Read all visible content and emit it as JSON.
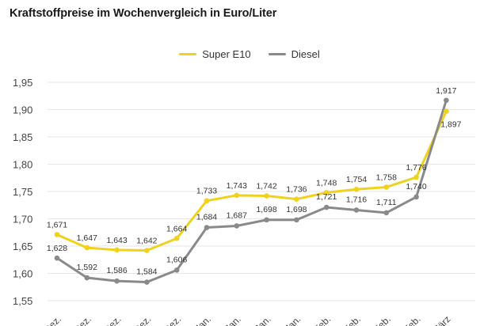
{
  "title": "Kraftstoffpreise im Wochenvergleich in Euro/Liter",
  "legend": {
    "series_a": "Super E10",
    "series_b": "Diesel"
  },
  "colors": {
    "series_a": "#f0d21e",
    "series_b": "#8a8a8a",
    "grid": "#e6e6e6",
    "text": "#444444"
  },
  "chart_data": {
    "type": "line",
    "title": "Kraftstoffpreise im Wochenvergleich in Euro/Liter",
    "xlabel": "",
    "ylabel": "",
    "ylim": [
      1.55,
      1.95
    ],
    "yticks": [
      "1,55",
      "1,60",
      "1,65",
      "1,70",
      "1,75",
      "1,80",
      "1,85",
      "1,90",
      "1,95"
    ],
    "grid": true,
    "legend_position": "top-center",
    "categories": [
      "Dez.",
      "Dez.",
      "Dez.",
      "Dez.",
      "Dez.",
      "Jan.",
      "Jan.",
      "Jan.",
      "Jan.",
      "Feb.",
      "Feb.",
      "Feb.",
      "Feb.",
      "März"
    ],
    "series": [
      {
        "name": "Super E10",
        "values": [
          1.671,
          1.647,
          1.643,
          1.642,
          1.664,
          1.733,
          1.743,
          1.742,
          1.736,
          1.748,
          1.754,
          1.758,
          1.776,
          1.897
        ],
        "labels": [
          "1,671",
          "1,647",
          "1,643",
          "1,642",
          "1,664",
          "1,733",
          "1,743",
          "1,742",
          "1,736",
          "1,748",
          "1,754",
          "1,758",
          "1,776",
          "1,897"
        ]
      },
      {
        "name": "Diesel",
        "values": [
          1.628,
          1.592,
          1.586,
          1.584,
          1.606,
          1.684,
          1.687,
          1.698,
          1.698,
          1.721,
          1.716,
          1.711,
          1.74,
          1.917
        ],
        "labels": [
          "1,628",
          "1,592",
          "1,586",
          "1,584",
          "1,606",
          "1,684",
          "1,687",
          "1,698",
          "1,698",
          "1,721",
          "1,716",
          "1,711",
          "1,740",
          "1,917"
        ]
      }
    ]
  }
}
